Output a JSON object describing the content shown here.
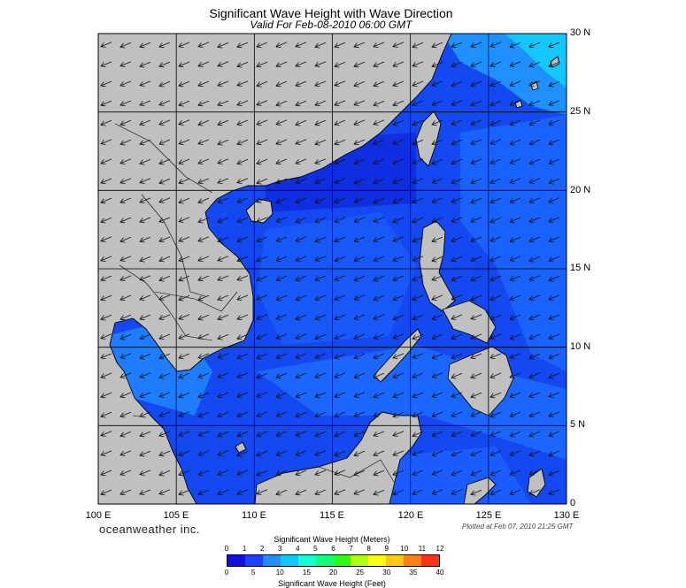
{
  "title": "Significant Wave Height with Wave Direction",
  "subtitle": "Valid For Feb-08-2010 06:00 GMT",
  "map": {
    "region": "South China Sea / Philippine Sea",
    "lon_range": [
      100,
      130
    ],
    "lat_range": [
      0,
      30
    ],
    "grid_step_deg": 5,
    "land_color": "#c0c0c0",
    "wave_direction": "predominantly from the northeast, arrows pointing southwest",
    "lon_labels": [
      "100 E",
      "105 E",
      "110 E",
      "115 E",
      "120 E",
      "125 E",
      "130 E"
    ],
    "lat_labels": [
      "30 N",
      "25 N",
      "20 N",
      "15 N",
      "10 N",
      "5 N",
      "0"
    ]
  },
  "branding": "oceanweather inc.",
  "plotted_note": "Plotted at Feb 07, 2010 21:25 GMT",
  "legend": {
    "meters_title": "Significant Wave Height (Meters)",
    "feet_title": "Significant Wave Height (Feet)",
    "meters_ticks": [
      "0",
      "1",
      "2",
      "3",
      "4",
      "5",
      "6",
      "7",
      "8",
      "9",
      "10",
      "11",
      "12"
    ],
    "feet_ticks": [
      "0",
      "5",
      "10",
      "15",
      "20",
      "25",
      "30",
      "35",
      "40"
    ],
    "colors": [
      "#1010e0",
      "#1e40ff",
      "#1e90ff",
      "#14c8ff",
      "#14ffd2",
      "#14ff78",
      "#28ff14",
      "#aaff14",
      "#ffff14",
      "#ffc814",
      "#ff8214",
      "#ff3214"
    ]
  }
}
